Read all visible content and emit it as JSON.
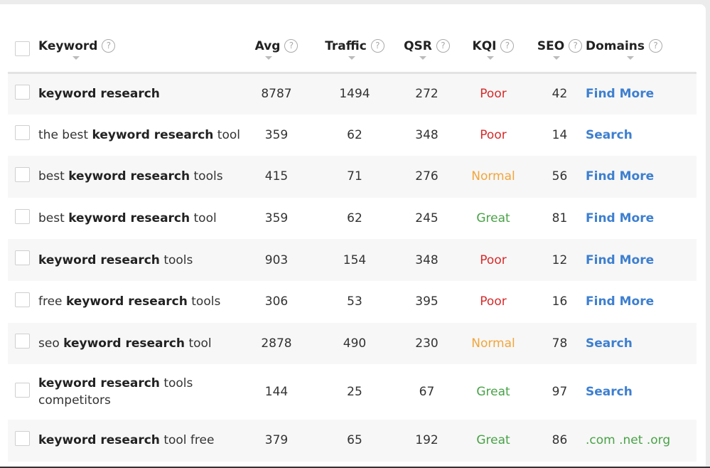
{
  "columns": {
    "keyword": "Keyword",
    "avg": "Avg",
    "traffic": "Traffic",
    "qsr": "QSR",
    "kqi": "KQI",
    "seo": "SEO",
    "domains": "Domains",
    "help_icon": "?"
  },
  "colors": {
    "poor": "#d62a2a",
    "normal": "#f2a53a",
    "great": "#48a247",
    "link": "#3d7fd0"
  },
  "rows": [
    {
      "kw_pre": "",
      "kw_bold": "keyword research",
      "kw_post": "",
      "avg": "8787",
      "traffic": "1494",
      "qsr": "272",
      "kqi": "Poor",
      "seo": "42",
      "domains": "Find More"
    },
    {
      "kw_pre": "the best ",
      "kw_bold": "keyword research",
      "kw_post": " tool",
      "avg": "359",
      "traffic": "62",
      "qsr": "348",
      "kqi": "Poor",
      "seo": "14",
      "domains": "Search"
    },
    {
      "kw_pre": "best ",
      "kw_bold": "keyword research",
      "kw_post": " tools",
      "avg": "415",
      "traffic": "71",
      "qsr": "276",
      "kqi": "Normal",
      "seo": "56",
      "domains": "Find More"
    },
    {
      "kw_pre": "best ",
      "kw_bold": "keyword research",
      "kw_post": " tool",
      "avg": "359",
      "traffic": "62",
      "qsr": "245",
      "kqi": "Great",
      "seo": "81",
      "domains": "Find More"
    },
    {
      "kw_pre": "",
      "kw_bold": "keyword research",
      "kw_post": " tools",
      "avg": "903",
      "traffic": "154",
      "qsr": "348",
      "kqi": "Poor",
      "seo": "12",
      "domains": "Find More"
    },
    {
      "kw_pre": "free ",
      "kw_bold": "keyword research",
      "kw_post": " tools",
      "avg": "306",
      "traffic": "53",
      "qsr": "395",
      "kqi": "Poor",
      "seo": "16",
      "domains": "Find More"
    },
    {
      "kw_pre": "seo ",
      "kw_bold": "keyword research",
      "kw_post": " tool",
      "avg": "2878",
      "traffic": "490",
      "qsr": "230",
      "kqi": "Normal",
      "seo": "78",
      "domains": "Search"
    },
    {
      "kw_pre": "",
      "kw_bold": "keyword research",
      "kw_post": " tools competitors",
      "avg": "144",
      "traffic": "25",
      "qsr": "67",
      "kqi": "Great",
      "seo": "97",
      "domains": "Search"
    },
    {
      "kw_pre": "",
      "kw_bold": "keyword research",
      "kw_post": " tool free",
      "avg": "379",
      "traffic": "65",
      "qsr": "192",
      "kqi": "Great",
      "seo": "86",
      "domains": ".com .net .org"
    }
  ]
}
